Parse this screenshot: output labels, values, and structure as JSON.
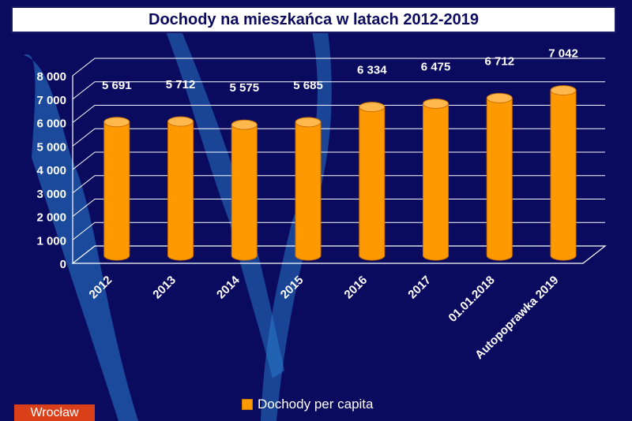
{
  "chart_data": {
    "type": "bar",
    "title": "Dochody na mieszkańca w latach 2012-2019",
    "categories": [
      "2012",
      "2013",
      "2014",
      "2015",
      "2016",
      "2017",
      "01.01.2018",
      "Autopoprawka 2019"
    ],
    "series": [
      {
        "name": "Dochody per capita",
        "values": [
          5691,
          5712,
          5575,
          5685,
          6334,
          6475,
          6712,
          7042
        ]
      }
    ],
    "data_labels": [
      "5 691",
      "5 712",
      "5 575",
      "5 685",
      "6 334",
      "6 475",
      "6 712",
      "7 042"
    ],
    "y_ticks": [
      "0",
      "1 000",
      "2 000",
      "3 000",
      "4 000",
      "5 000",
      "6 000",
      "7 000",
      "8 000"
    ],
    "ylim": [
      0,
      8000
    ],
    "grid": true,
    "legend": "bottom",
    "colors": {
      "bar": "#ff9900",
      "background": "#0a0a5e",
      "grid": "#ffffff"
    }
  },
  "logo": {
    "text": "Wrocław"
  }
}
